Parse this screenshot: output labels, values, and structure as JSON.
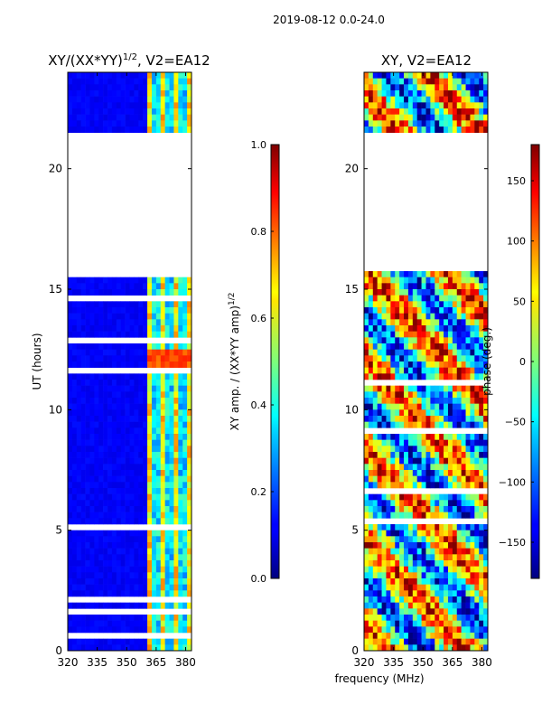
{
  "suptitle": "2019-08-12 0.0-24.0",
  "xlabel": "frequency (MHz)",
  "chart_data": [
    {
      "type": "heatmap",
      "title_main": "XY/(XX*YY)",
      "title_sup": "1/2",
      "title_rest": ", V2=EA12",
      "ylabel": "UT (hours)",
      "xlim": [
        320,
        383
      ],
      "ylim": [
        0,
        24
      ],
      "xticks": [
        320,
        335,
        350,
        365,
        380
      ],
      "yticks": [
        0,
        5,
        10,
        15,
        20
      ],
      "colorbar": {
        "label_main": "XY amp. / (XX*YY amp)",
        "label_sup": "1/2",
        "range": [
          0.0,
          1.0
        ],
        "ticks": [
          "0.0",
          "0.2",
          "0.4",
          "0.6",
          "0.8",
          "1.0"
        ],
        "colormap": "jet"
      },
      "empty_band_hours": [
        15.8,
        21.5
      ]
    },
    {
      "type": "heatmap",
      "title": "XY, V2=EA12",
      "xlim": [
        320,
        383
      ],
      "ylim": [
        0,
        24
      ],
      "xticks": [
        320,
        335,
        350,
        365,
        380
      ],
      "yticks": [
        0,
        5,
        10,
        15,
        20
      ],
      "colorbar": {
        "label": "phase (deg.)",
        "range": [
          -180,
          180
        ],
        "ticks": [
          "-150",
          "-100",
          "-50",
          "0",
          "50",
          "100",
          "150"
        ],
        "colormap": "jet"
      },
      "empty_band_hours": [
        15.8,
        21.5
      ]
    }
  ]
}
